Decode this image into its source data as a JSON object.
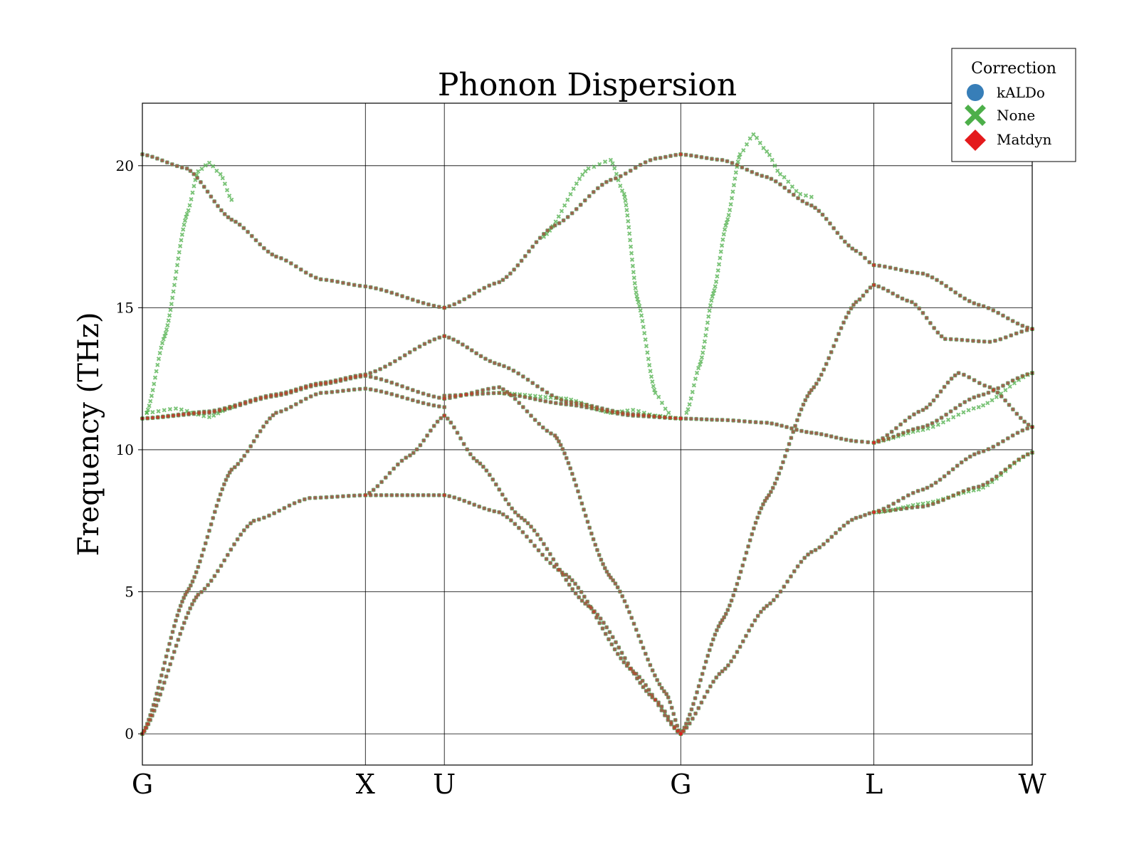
{
  "chart_data": {
    "type": "scatter",
    "title": "Phonon Dispersion",
    "xlabel": "",
    "ylabel": "Frequency (THz)",
    "ylim": [
      -1.1,
      22.2
    ],
    "yticks": [
      0,
      5,
      10,
      15,
      20
    ],
    "grid": true,
    "high_symmetry_points": [
      {
        "label": "G",
        "x": 0.0
      },
      {
        "label": "X",
        "x": 1.0
      },
      {
        "label": "U",
        "x": 1.354
      },
      {
        "label": "G",
        "x": 2.414
      },
      {
        "label": "L",
        "x": 3.28
      },
      {
        "label": "W",
        "x": 3.99
      }
    ],
    "legend": {
      "title": "Correction",
      "placement": "top-right (outside)",
      "entries": [
        {
          "name": "kALDo",
          "marker": "circle",
          "color": "#377eb8"
        },
        {
          "name": "None",
          "marker": "x",
          "color": "#4daf4a"
        },
        {
          "name": "Matdyn",
          "marker": "diamond",
          "color": "#e41a1c"
        }
      ]
    },
    "series": [
      {
        "name": "Matdyn",
        "marker": "diamond",
        "color": "#e41a1c",
        "branches": [
          {
            "x": [
              0,
              0.25,
              0.5,
              0.75,
              1.0,
              1.354
            ],
            "y": [
              0,
              4.9,
              7.5,
              8.3,
              8.4,
              8.4
            ]
          },
          {
            "x": [
              0,
              0.2,
              0.4,
              0.6,
              0.8,
              1.0,
              1.354
            ],
            "y": [
              0,
              5.0,
              9.3,
              11.3,
              12.0,
              12.15,
              11.5
            ]
          },
          {
            "x": [
              0,
              0.3,
              0.6,
              0.8,
              1.0,
              1.354
            ],
            "y": [
              11.1,
              11.3,
              11.9,
              12.3,
              12.6,
              11.8
            ]
          },
          {
            "x": [
              0,
              0.3,
              0.6,
              0.8,
              1.0,
              1.354
            ],
            "y": [
              11.1,
              11.35,
              11.95,
              12.35,
              12.65,
              14.0
            ]
          },
          {
            "x": [
              0,
              0.2,
              0.4,
              0.6,
              0.8,
              1.0,
              1.354
            ],
            "y": [
              20.4,
              19.9,
              18.1,
              16.8,
              16.0,
              15.75,
              15.0
            ]
          },
          {
            "x": [
              1.0,
              1.2,
              1.354
            ],
            "y": [
              8.4,
              9.8,
              11.2
            ]
          },
          {
            "x": [
              1.354,
              1.6,
              1.9,
              2.2,
              2.414
            ],
            "y": [
              8.4,
              7.8,
              5.6,
              2.2,
              0
            ]
          },
          {
            "x": [
              1.354,
              1.5,
              1.7,
              2.0,
              2.3,
              2.414
            ],
            "y": [
              11.2,
              9.6,
              7.6,
              4.5,
              1.2,
              0
            ]
          },
          {
            "x": [
              1.354,
              1.6,
              1.85,
              2.1,
              2.35,
              2.414
            ],
            "y": [
              11.8,
              12.2,
              10.5,
              5.5,
              1.4,
              0
            ]
          },
          {
            "x": [
              1.354,
              1.6,
              1.9,
              2.2,
              2.414
            ],
            "y": [
              11.9,
              12.0,
              11.6,
              11.2,
              11.1
            ]
          },
          {
            "x": [
              1.354,
              1.6,
              1.9,
              2.2,
              2.414
            ],
            "y": [
              14.0,
              13.0,
              11.7,
              11.25,
              11.1
            ]
          },
          {
            "x": [
              1.354,
              1.6,
              1.85,
              2.1,
              2.3,
              2.414
            ],
            "y": [
              15.0,
              15.9,
              17.9,
              19.5,
              20.25,
              20.4
            ]
          },
          {
            "x": [
              2.414,
              2.6,
              2.8,
              3.0,
              3.2,
              3.28
            ],
            "y": [
              0,
              2.2,
              4.5,
              6.4,
              7.6,
              7.8
            ]
          },
          {
            "x": [
              2.414,
              2.6,
              2.8,
              3.0,
              3.2,
              3.28
            ],
            "y": [
              0,
              4.0,
              8.3,
              12.1,
              15.2,
              15.8
            ]
          },
          {
            "x": [
              2.414,
              2.6,
              2.8,
              3.0,
              3.2,
              3.28
            ],
            "y": [
              11.1,
              11.05,
              10.95,
              10.6,
              10.3,
              10.25
            ]
          },
          {
            "x": [
              2.414,
              2.6,
              2.8,
              3.0,
              3.2,
              3.28
            ],
            "y": [
              20.4,
              20.2,
              19.6,
              18.6,
              17.0,
              16.5
            ]
          },
          {
            "x": [
              3.28,
              3.5,
              3.75,
              3.99
            ],
            "y": [
              7.8,
              8.0,
              8.7,
              9.9
            ]
          },
          {
            "x": [
              3.28,
              3.5,
              3.75,
              3.99
            ],
            "y": [
              7.8,
              8.6,
              9.9,
              10.8
            ]
          },
          {
            "x": [
              3.28,
              3.5,
              3.75,
              3.99
            ],
            "y": [
              10.25,
              10.8,
              11.9,
              12.7
            ]
          },
          {
            "x": [
              3.28,
              3.5,
              3.66,
              3.8,
              3.99
            ],
            "y": [
              10.25,
              11.4,
              12.7,
              12.2,
              10.8
            ]
          },
          {
            "x": [
              3.28,
              3.45,
              3.6,
              3.8,
              3.99
            ],
            "y": [
              15.8,
              15.2,
              13.9,
              13.8,
              14.25
            ]
          },
          {
            "x": [
              3.28,
              3.5,
              3.75,
              3.99
            ],
            "y": [
              16.5,
              16.2,
              15.1,
              14.25
            ]
          }
        ]
      },
      {
        "name": "kALDo",
        "marker": "circle",
        "color": "#377eb8",
        "note_same_as": "Matdyn"
      },
      {
        "name": "None",
        "marker": "x",
        "color": "#4daf4a",
        "branches": [
          {
            "x": [
              0.02,
              0.1,
              0.2,
              0.25,
              0.3,
              0.35,
              0.4
            ],
            "y": [
              11.3,
              14.0,
              18.3,
              19.8,
              20.1,
              19.7,
              18.8
            ]
          },
          {
            "x": [
              0.02,
              0.15,
              0.3,
              0.4
            ],
            "y": [
              11.3,
              11.45,
              11.15,
              11.5
            ]
          },
          {
            "x": [
              1.6,
              1.9,
              2.1,
              2.2,
              2.3,
              2.414
            ],
            "y": [
              12.0,
              11.8,
              11.3,
              11.4,
              11.2,
              11.1
            ]
          },
          {
            "x": [
              1.8,
              2.0,
              2.1,
              2.16,
              2.22,
              2.3,
              2.36
            ],
            "y": [
              17.5,
              19.9,
              20.2,
              19.0,
              15.3,
              12.0,
              11.3
            ]
          },
          {
            "x": [
              2.44,
              2.5,
              2.56,
              2.62,
              2.68,
              2.74,
              2.8,
              2.86,
              2.95,
              3.0
            ],
            "y": [
              11.3,
              13.0,
              15.5,
              18.0,
              20.4,
              21.1,
              20.5,
              19.7,
              19.0,
              18.9
            ]
          },
          {
            "x": [
              3.3,
              3.5,
              3.75,
              3.99
            ],
            "y": [
              7.8,
              8.1,
              8.6,
              9.9
            ]
          },
          {
            "x": [
              3.3,
              3.5,
              3.75,
              3.99
            ],
            "y": [
              10.3,
              10.7,
              11.5,
              12.7
            ]
          }
        ]
      }
    ]
  }
}
